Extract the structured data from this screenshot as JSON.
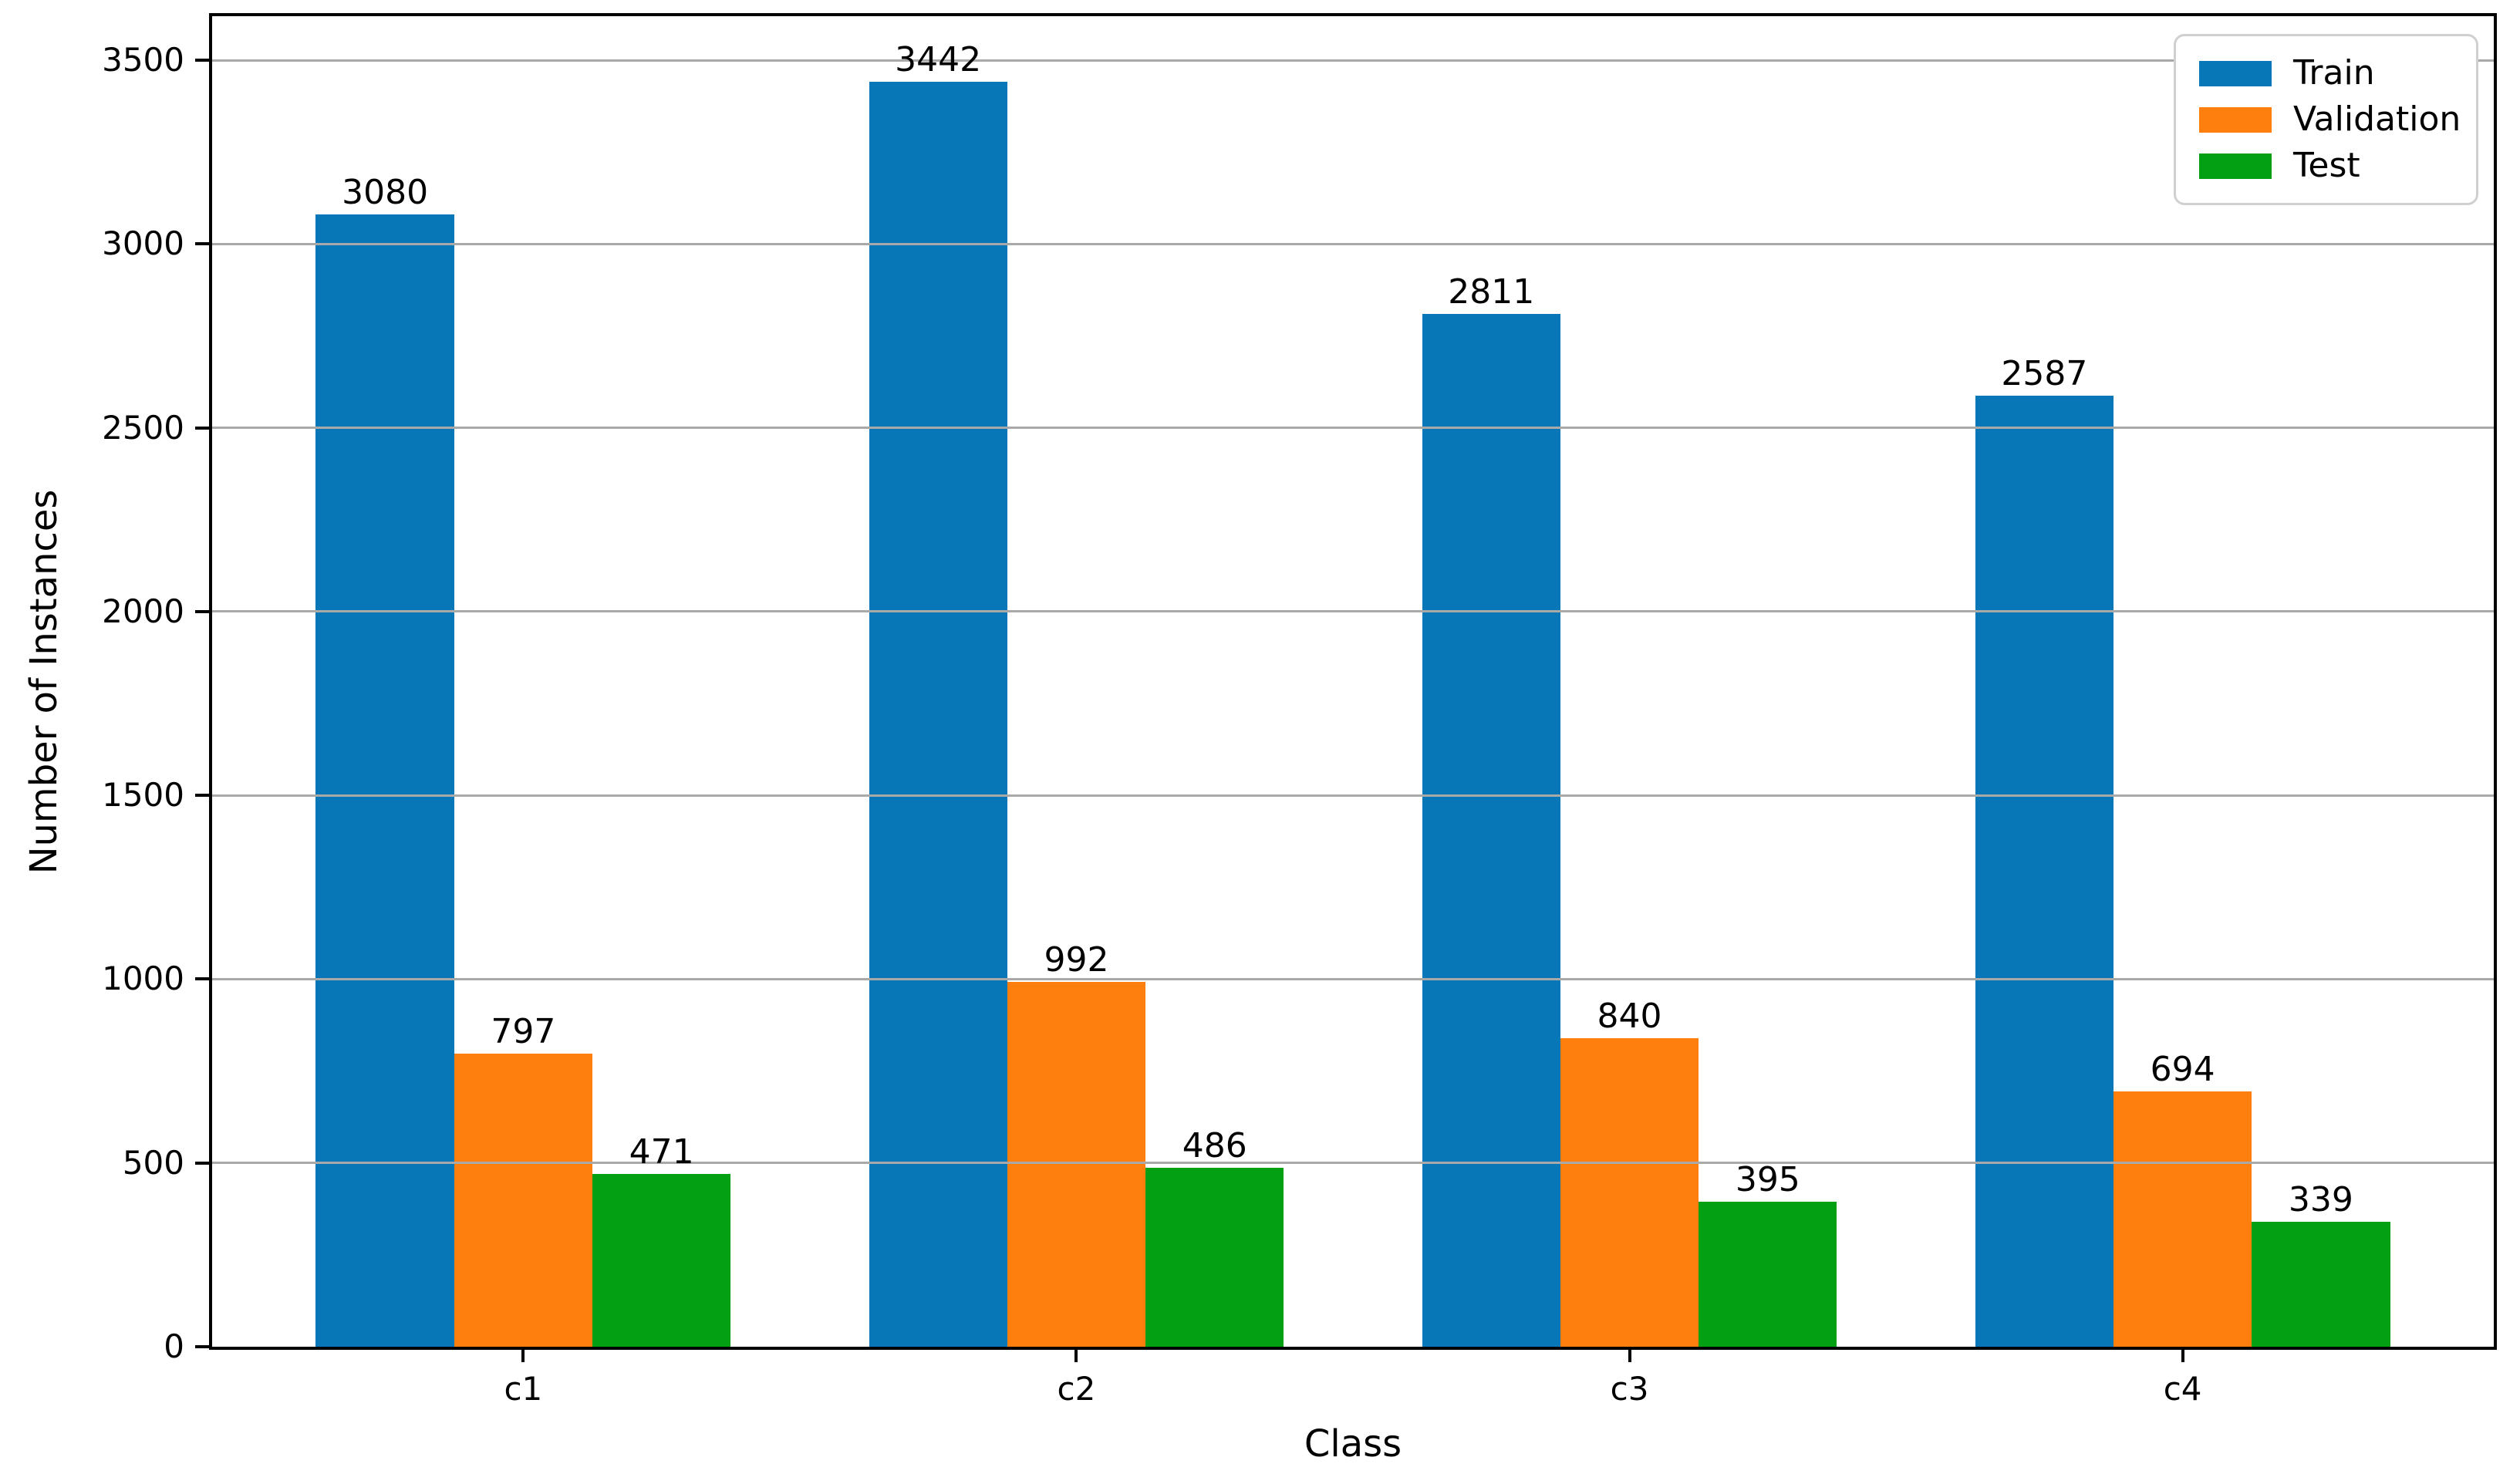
{
  "figure": {
    "background": "#ffffff"
  },
  "chart_data": {
    "type": "bar",
    "title": "",
    "xlabel": "Class",
    "ylabel": "Number of Instances",
    "categories": [
      "c1",
      "c2",
      "c3",
      "c4"
    ],
    "series": [
      {
        "name": "Train",
        "color": "#0877b8",
        "values": [
          3080,
          3442,
          2811,
          2587
        ]
      },
      {
        "name": "Validation",
        "color": "#ff7f0e",
        "values": [
          797,
          992,
          840,
          694
        ]
      },
      {
        "name": "Test",
        "color": "#04a014",
        "values": [
          471,
          486,
          395,
          339
        ]
      }
    ],
    "bar_value_labels": true,
    "yticks": [
      0,
      500,
      1000,
      1500,
      2000,
      2500,
      3000,
      3500
    ],
    "ylim": [
      0,
      3620
    ],
    "grid": "horizontal",
    "grid_color": "#a9a9a9",
    "grid_over_bars": true,
    "legend": {
      "position": "upper-right",
      "entries": [
        "Train",
        "Validation",
        "Test"
      ]
    }
  }
}
